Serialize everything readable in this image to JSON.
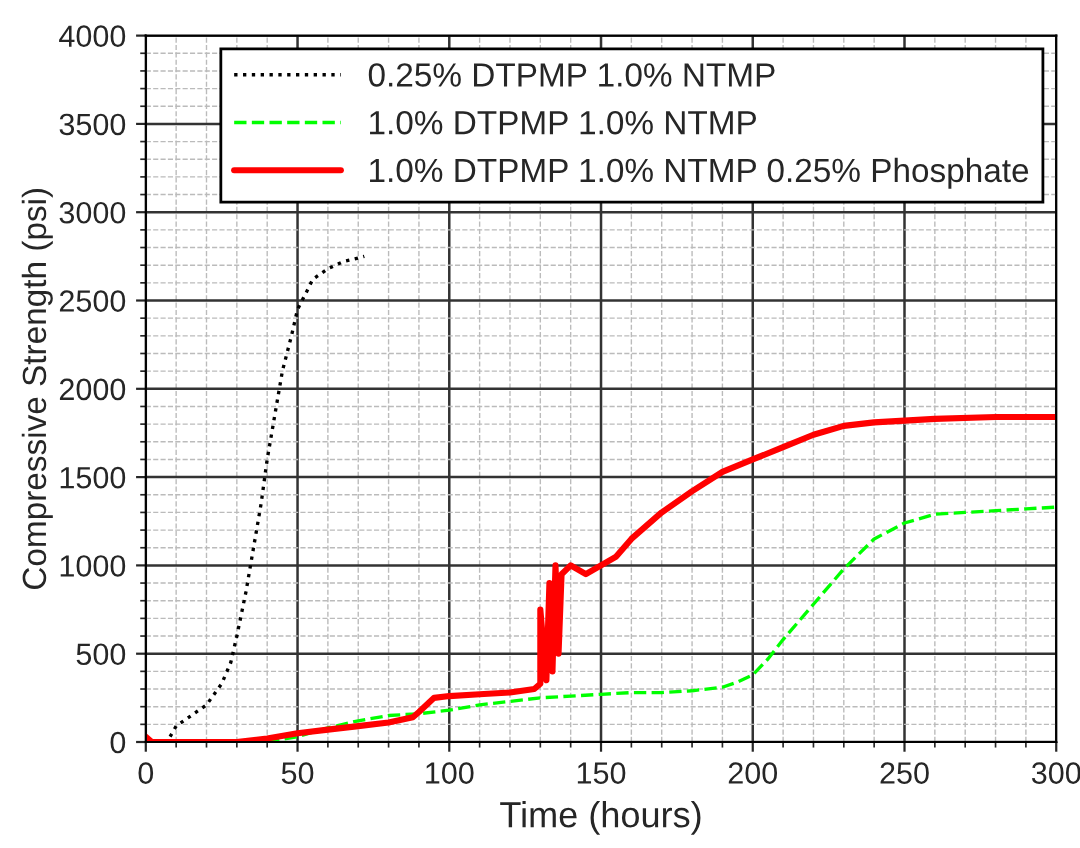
{
  "chart_data": {
    "type": "line",
    "xlabel": "Time (hours)",
    "ylabel": "Compressive Strength (psi)",
    "xlim": [
      0,
      300
    ],
    "ylim": [
      0,
      4000
    ],
    "xticks": [
      0,
      50,
      100,
      150,
      200,
      250,
      300
    ],
    "yticks": [
      0,
      500,
      1000,
      1500,
      2000,
      2500,
      3000,
      3500,
      4000
    ],
    "grid": true,
    "legend": "top right",
    "series": [
      {
        "name": "0.25% DTPMP 1.0% NTMP",
        "color": "#000000",
        "line_style": "dotted",
        "x": [
          8,
          10,
          15,
          20,
          25,
          28,
          30,
          33,
          35,
          38,
          40,
          43,
          45,
          48,
          50,
          53,
          55,
          60,
          65,
          70,
          72
        ],
        "values": [
          30,
          90,
          150,
          210,
          330,
          450,
          600,
          850,
          1050,
          1350,
          1600,
          1900,
          2100,
          2300,
          2450,
          2550,
          2620,
          2680,
          2720,
          2740,
          2750
        ]
      },
      {
        "name": "1.0% DTPMP 1.0% NTMP",
        "color": "#00ff00",
        "line_style": "dashed",
        "x": [
          40,
          50,
          60,
          70,
          80,
          90,
          100,
          110,
          120,
          130,
          140,
          150,
          160,
          170,
          180,
          190,
          195,
          200,
          205,
          210,
          220,
          230,
          240,
          250,
          260,
          270,
          280,
          290,
          300
        ],
        "values": [
          0,
          30,
          80,
          120,
          150,
          160,
          180,
          210,
          230,
          250,
          260,
          270,
          280,
          280,
          290,
          310,
          340,
          380,
          470,
          580,
          780,
          980,
          1150,
          1240,
          1290,
          1300,
          1310,
          1320,
          1330
        ]
      },
      {
        "name": "1.0% DTPMP 1.0% NTMP 0.25% Phosphate",
        "color": "#ff0000",
        "line_style": "solid",
        "x": [
          0,
          2,
          30,
          40,
          50,
          60,
          70,
          80,
          88,
          90,
          95,
          100,
          110,
          120,
          128,
          130,
          130,
          132,
          133,
          134,
          135,
          136,
          137,
          140,
          145,
          150,
          155,
          160,
          170,
          180,
          190,
          200,
          210,
          220,
          230,
          240,
          250,
          260,
          280,
          300
        ],
        "values": [
          30,
          0,
          0,
          20,
          50,
          70,
          90,
          110,
          140,
          170,
          250,
          260,
          270,
          280,
          300,
          330,
          750,
          350,
          900,
          400,
          1000,
          500,
          950,
          1000,
          950,
          1000,
          1050,
          1150,
          1300,
          1420,
          1530,
          1600,
          1670,
          1740,
          1790,
          1810,
          1820,
          1830,
          1840,
          1840
        ]
      }
    ]
  }
}
